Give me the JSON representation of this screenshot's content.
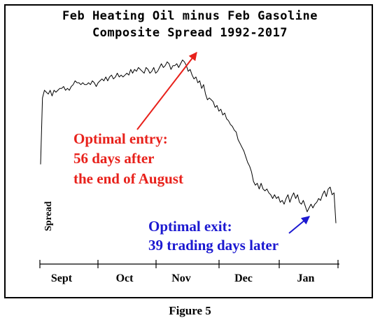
{
  "chart_data": {
    "type": "line",
    "title": "Feb Heating Oil minus Feb Gasoline",
    "subtitle": "Composite Spread 1992-2017",
    "xlabel": "",
    "ylabel": "Spread",
    "months": [
      "Sept",
      "Oct",
      "Nov",
      "Dec",
      "Jan"
    ],
    "grid": false,
    "legend": "none",
    "series": [
      {
        "color": "#000000",
        "x": [
          0,
          1,
          2,
          3,
          4,
          5,
          6,
          7,
          8,
          9,
          10,
          11,
          12,
          13,
          14,
          15,
          16,
          17,
          18,
          19,
          20,
          21,
          22,
          23,
          24,
          25,
          26,
          27,
          28,
          29,
          30,
          31,
          32,
          33,
          34,
          35,
          36,
          37,
          38,
          39,
          40,
          41,
          42,
          43,
          44,
          45,
          46,
          47,
          48,
          49,
          50,
          51,
          52,
          53,
          54,
          55,
          56,
          57,
          58,
          59,
          60,
          61,
          62,
          63,
          64,
          65,
          66,
          67,
          68,
          69,
          70,
          71,
          72,
          73,
          74,
          75,
          76,
          77,
          78,
          79,
          80,
          81,
          82,
          83,
          84,
          85,
          86,
          87,
          88,
          89,
          90,
          91,
          92,
          93,
          94,
          95,
          96,
          97,
          98,
          99,
          100,
          101,
          102,
          103,
          104,
          105,
          106,
          107,
          108,
          109,
          110,
          111,
          112,
          113,
          114,
          115,
          116,
          117,
          118,
          119,
          120,
          121,
          122,
          123,
          124,
          125,
          126,
          127,
          128,
          129,
          130,
          131,
          132,
          133,
          134,
          135,
          136,
          137,
          138,
          139,
          140,
          141,
          142,
          143,
          144,
          145,
          146,
          147,
          148,
          149,
          150,
          151,
          152,
          153,
          154
        ],
        "values": [
          40,
          75,
          79,
          78,
          77,
          79,
          76,
          79,
          78,
          79,
          80,
          80,
          81,
          79,
          80,
          79,
          81,
          82,
          84,
          83,
          83,
          82,
          83,
          82,
          82,
          83,
          82,
          84,
          83,
          81,
          83,
          84,
          85,
          84,
          86,
          84,
          86,
          87,
          85,
          86,
          88,
          86,
          87,
          86,
          87,
          88,
          87,
          90,
          88,
          90,
          89,
          91,
          90,
          89,
          88,
          91,
          90,
          88,
          89,
          91,
          88,
          89,
          91,
          93,
          91,
          92,
          94,
          93,
          90,
          92,
          92,
          93,
          91,
          93,
          95,
          94,
          92,
          89,
          90,
          87,
          85,
          86,
          83,
          84,
          80,
          82,
          77,
          74,
          75,
          74,
          73,
          70,
          71,
          68,
          69,
          66,
          67,
          64,
          63,
          61,
          60,
          58,
          57,
          53,
          51,
          49,
          47,
          44,
          41,
          39,
          36,
          31,
          29,
          30,
          27,
          30,
          27,
          26,
          27,
          25,
          24,
          22,
          24,
          22,
          23,
          20,
          21,
          19,
          22,
          24,
          20,
          23,
          25,
          22,
          24,
          20,
          19,
          21,
          18,
          15,
          17,
          19,
          17,
          19,
          20,
          22,
          21,
          24,
          26,
          23,
          27,
          28,
          24,
          25,
          9
        ]
      }
    ],
    "annotations": [
      {
        "lines": [
          "Optimal entry:",
          "56 days after",
          "the end of August"
        ],
        "color": "#e8211b"
      },
      {
        "lines": [
          "Optimal exit:",
          "39 trading days later"
        ],
        "color": "#1c19d1"
      }
    ]
  },
  "caption": "Figure 5"
}
